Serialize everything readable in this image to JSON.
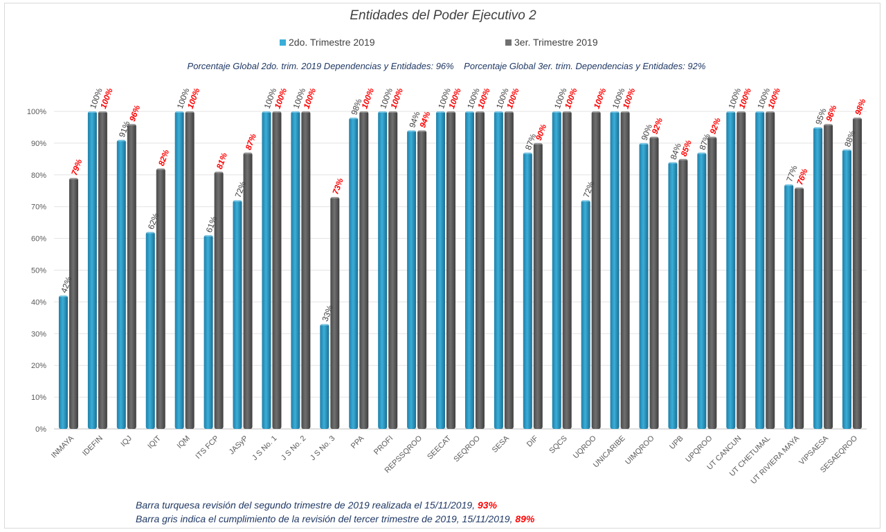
{
  "colors": {
    "series1": "#3aaed8",
    "series2": "#707070",
    "label2": "#ff0000",
    "label1": "#404040",
    "note": "#1f3864"
  },
  "summary": {
    "text1": "Porcentaje Global 2do. trim. 2019 Dependencias y Entidades: 96%",
    "text2": "Porcentaje Global 3er. trim. Dependencias y Entidades: 92%"
  },
  "notes": {
    "line1": "Barra turquesa revisión del segundo trimestre de 2019 realizada el 15/11/2019, ",
    "line1_pct": "93%",
    "line2": "Barra gris indica el cumplimiento de la revisión del tercer trimestre de 2019, 15/11/2019, ",
    "line2_pct": "89%"
  },
  "chart_data": {
    "type": "bar",
    "title": "Entidades del Poder Ejecutivo 2",
    "categories": [
      "INMAYA",
      "IDEFIN",
      "IQJ",
      "IQIT",
      "IQM",
      "ITS FCP",
      "JASyP",
      "J S No. 1",
      "J S No. 2",
      "J S No. 3",
      "PPA",
      "PROFI",
      "REPSSQROO",
      "SEECAT",
      "SEQROO",
      "SESA",
      "DIF",
      "SQCS",
      "UQROO",
      "UNICARIBE",
      "UIMQROO",
      "UPB",
      "UPQROO",
      "UT CANCUN",
      "UT CHETUMAL",
      "UT RIVIERA MAYA",
      "VIPSAESA",
      "SESAEQROO"
    ],
    "series": [
      {
        "name": "2do. Trimestre 2019",
        "values": [
          42,
          100,
          91,
          62,
          100,
          61,
          72,
          100,
          100,
          33,
          98,
          100,
          94,
          100,
          100,
          100,
          87,
          100,
          72,
          100,
          90,
          84,
          87,
          100,
          100,
          77,
          95,
          88
        ]
      },
      {
        "name": "3er. Trimestre 2019",
        "values": [
          79,
          100,
          96,
          82,
          100,
          81,
          87,
          100,
          100,
          73,
          100,
          100,
          94,
          100,
          100,
          100,
          90,
          100,
          100,
          100,
          92,
          85,
          92,
          100,
          100,
          76,
          96,
          98
        ]
      }
    ],
    "labels": [
      [
        "42%",
        "79%"
      ],
      [
        "100%",
        "100%"
      ],
      [
        "91%",
        "96%"
      ],
      [
        "62%",
        "82%"
      ],
      [
        "100%",
        "100%"
      ],
      [
        "61%",
        "81%"
      ],
      [
        "72%",
        "87%"
      ],
      [
        "100%",
        "100%"
      ],
      [
        "100%",
        "100%"
      ],
      [
        "33%",
        "73%"
      ],
      [
        "98%",
        "100%"
      ],
      [
        "100%",
        "100%"
      ],
      [
        "94%",
        "94%"
      ],
      [
        "100%",
        "100%"
      ],
      [
        "100%",
        "100%"
      ],
      [
        "100%",
        "100%"
      ],
      [
        "87%",
        "90%"
      ],
      [
        "100%",
        "100%"
      ],
      [
        "72%",
        "100%"
      ],
      [
        "100%",
        "100%"
      ],
      [
        "90%",
        "92%"
      ],
      [
        "84%",
        "85%"
      ],
      [
        "87%",
        "92%"
      ],
      [
        "100%",
        "100%"
      ],
      [
        "100%",
        "100%"
      ],
      [
        "77%",
        "76%"
      ],
      [
        "95%",
        "96%"
      ],
      [
        "88%",
        "98%"
      ]
    ],
    "ylim": [
      0,
      100
    ],
    "yticks": [
      "0%",
      "10%",
      "20%",
      "30%",
      "40%",
      "50%",
      "60%",
      "70%",
      "80%",
      "90%",
      "100%"
    ],
    "grid": true,
    "legend_position": "top"
  }
}
